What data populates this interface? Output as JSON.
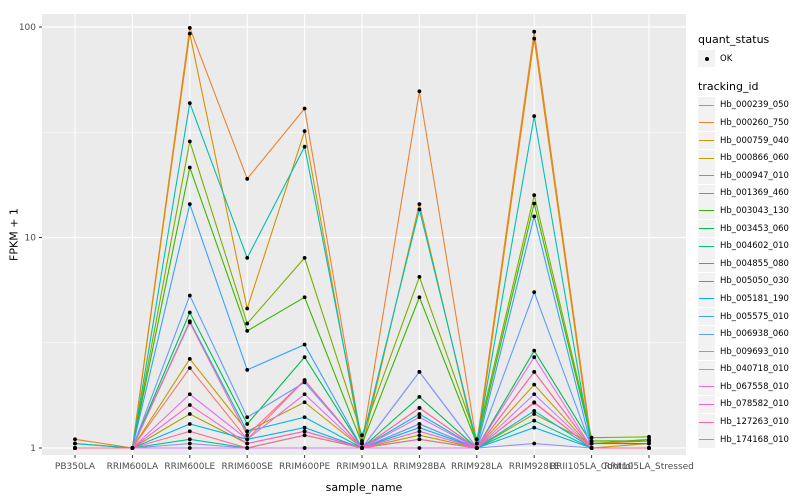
{
  "chart_data": {
    "type": "line",
    "xlabel": "sample_name",
    "ylabel": "FPKM + 1",
    "yscale": "log10",
    "ylim": [
      1,
      100
    ],
    "yticks": [
      1,
      10,
      100
    ],
    "grid": true,
    "panel_bg": "#EBEBEB",
    "grid_color": "#FFFFFF",
    "tick_label_color": "#4D4D4D",
    "point_color": "#000000",
    "legend": {
      "position": "right",
      "quant_status_title": "quant_status",
      "quant_status_items": [
        {
          "label": "OK",
          "marker": "point"
        }
      ],
      "tracking_id_title": "tracking_id"
    },
    "categories": [
      "PB350LA",
      "RRIM600LA",
      "RRIM600LE",
      "RRIM600SE",
      "RRIM600PE",
      "RRIM901LA",
      "RRIM928BA",
      "RRIM928LA",
      "RRIM928LE",
      "RRII105LA_Control",
      "RRII105LA_Stressed"
    ],
    "series": [
      {
        "name": "Hb_000239_050",
        "color": "#F8766D",
        "values": [
          1.0,
          1.0,
          2.4,
          1.1,
          2.1,
          1.0,
          1.55,
          1.0,
          2.3,
          1.0,
          1.0
        ]
      },
      {
        "name": "Hb_000260_750",
        "color": "#EA8331",
        "values": [
          1.1,
          1.0,
          99.0,
          19.0,
          41.0,
          1.05,
          49.5,
          1.05,
          95.0,
          1.05,
          1.08
        ]
      },
      {
        "name": "Hb_000759_040",
        "color": "#D89000",
        "values": [
          1.05,
          1.0,
          93.0,
          4.6,
          32.0,
          1.0,
          14.4,
          1.0,
          88.0,
          1.0,
          1.05
        ]
      },
      {
        "name": "Hb_000866_060",
        "color": "#C09B00",
        "values": [
          1.0,
          1.0,
          2.65,
          1.2,
          1.65,
          1.0,
          1.3,
          1.0,
          2.0,
          1.0,
          1.0
        ]
      },
      {
        "name": "Hb_000947_010",
        "color": "#A3A500",
        "values": [
          1.0,
          1.0,
          1.45,
          1.05,
          1.2,
          1.0,
          1.15,
          1.0,
          1.45,
          1.05,
          1.1
        ]
      },
      {
        "name": "Hb_001369_460",
        "color": "#7CAE00",
        "values": [
          1.0,
          1.0,
          28.6,
          3.9,
          8.0,
          1.15,
          6.5,
          1.1,
          15.9,
          1.12,
          1.13
        ]
      },
      {
        "name": "Hb_003043_130",
        "color": "#39B600",
        "values": [
          1.0,
          1.0,
          21.5,
          3.6,
          5.2,
          1.05,
          5.2,
          1.05,
          14.5,
          1.08,
          1.08
        ]
      },
      {
        "name": "Hb_003453_060",
        "color": "#00BB4E",
        "values": [
          1.0,
          1.0,
          4.4,
          1.3,
          2.7,
          1.0,
          1.75,
          1.0,
          2.9,
          1.05,
          1.05
        ]
      },
      {
        "name": "Hb_004602_010",
        "color": "#00C087",
        "values": [
          1.0,
          1.0,
          1.1,
          1.0,
          1.15,
          1.0,
          1.1,
          1.0,
          1.35,
          1.0,
          1.0
        ]
      },
      {
        "name": "Hb_004855_080",
        "color": "#00C0B2",
        "values": [
          1.05,
          1.0,
          43.5,
          8.0,
          27.0,
          1.08,
          13.6,
          1.05,
          37.7,
          1.0,
          1.0
        ]
      },
      {
        "name": "Hb_005050_030",
        "color": "#00BCD8",
        "values": [
          1.0,
          1.0,
          4.0,
          1.2,
          1.4,
          1.0,
          1.45,
          1.0,
          1.5,
          1.0,
          1.0
        ]
      },
      {
        "name": "Hb_005181_190",
        "color": "#00B0F6",
        "values": [
          1.0,
          1.0,
          1.3,
          1.1,
          1.25,
          1.0,
          1.25,
          1.0,
          1.25,
          1.0,
          1.0
        ]
      },
      {
        "name": "Hb_005575_010",
        "color": "#35A2FF",
        "values": [
          1.0,
          1.0,
          14.4,
          2.35,
          3.1,
          1.0,
          2.3,
          1.0,
          12.6,
          1.0,
          1.0
        ]
      },
      {
        "name": "Hb_006938_060",
        "color": "#619CFF",
        "values": [
          1.0,
          1.0,
          5.3,
          1.4,
          2.05,
          1.0,
          1.3,
          1.0,
          5.5,
          1.0,
          1.0
        ]
      },
      {
        "name": "Hb_009693_010",
        "color": "#9590FF",
        "values": [
          1.0,
          1.0,
          1.05,
          1.0,
          1.0,
          1.0,
          2.3,
          1.0,
          1.05,
          1.0,
          1.0
        ]
      },
      {
        "name": "Hb_040718_010",
        "color": "#C77CFF",
        "values": [
          1.0,
          1.0,
          1.0,
          1.0,
          1.0,
          1.0,
          1.0,
          1.0,
          1.8,
          1.0,
          1.0
        ]
      },
      {
        "name": "Hb_067558_010",
        "color": "#E76BF3",
        "values": [
          1.0,
          1.0,
          1.8,
          1.1,
          1.8,
          1.0,
          1.4,
          1.0,
          2.7,
          1.0,
          1.0
        ]
      },
      {
        "name": "Hb_078582_010",
        "color": "#FF61C9",
        "values": [
          1.0,
          1.0,
          1.6,
          1.05,
          1.2,
          1.0,
          1.2,
          1.0,
          1.64,
          1.0,
          1.0
        ]
      },
      {
        "name": "Hb_127263_010",
        "color": "#FF65AC",
        "values": [
          1.0,
          1.0,
          3.95,
          1.15,
          2.1,
          1.0,
          1.55,
          1.0,
          2.3,
          1.0,
          1.0
        ]
      },
      {
        "name": "Hb_174168_010",
        "color": "#FF6C90",
        "values": [
          1.0,
          1.0,
          1.2,
          1.0,
          1.15,
          1.0,
          1.1,
          1.0,
          1.65,
          1.0,
          1.0
        ]
      }
    ]
  }
}
